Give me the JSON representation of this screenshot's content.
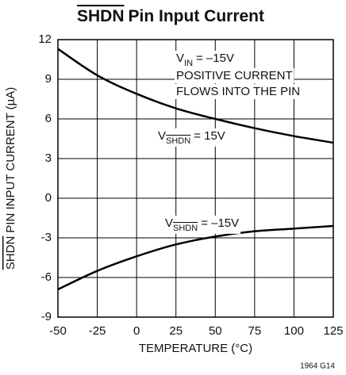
{
  "chart_data": {
    "type": "line",
    "title": [
      "SHDN",
      "Pin Input Current"
    ],
    "ylabel": [
      "SHDN",
      "PIN INPUT CURRENT (µA)"
    ],
    "xlabel": "TEMPERATURE (°C)",
    "x": [
      -50,
      -25,
      0,
      25,
      50,
      75,
      100,
      125
    ],
    "series": [
      {
        "label": {
          "main": "V",
          "sub": "SHDN",
          "rest": "= 15V"
        },
        "color": "#000000",
        "values": [
          11.3,
          9.3,
          7.9,
          6.8,
          6.0,
          5.3,
          4.7,
          4.2
        ]
      },
      {
        "label": {
          "main": "V",
          "sub": "SHDN",
          "rest": "= –15V"
        },
        "color": "#000000",
        "values": [
          -6.9,
          -5.5,
          -4.4,
          -3.5,
          -2.9,
          -2.5,
          -2.3,
          -2.1
        ]
      }
    ],
    "annotations": [
      {
        "main": "V",
        "sub": "IN",
        "rest": "= –15V"
      },
      "POSITIVE CURRENT",
      "FLOWS INTO THE PIN"
    ],
    "note": "1964 G14",
    "xlim": [
      -50,
      125
    ],
    "xticks": [
      -50,
      -25,
      0,
      25,
      50,
      75,
      100,
      125
    ],
    "ylim": [
      -9,
      12
    ],
    "yticks": [
      -9,
      -6,
      -3,
      0,
      3,
      6,
      9,
      12
    ],
    "grid": true
  }
}
